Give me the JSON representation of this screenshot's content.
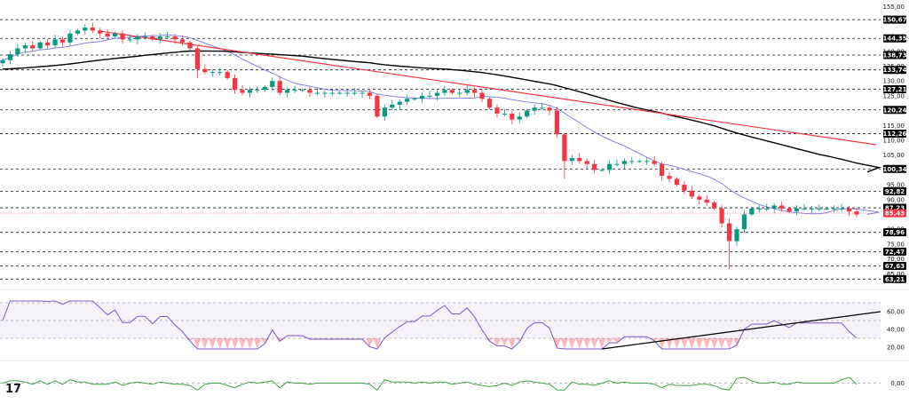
{
  "colors": {
    "bull": "#089981",
    "bear": "#f23645",
    "ma_fast": "#7b78e0",
    "ma_slow": "#000000",
    "trend": "#f23645",
    "rsi_line": "#7e57c2",
    "rsi_band": "#7e57c2",
    "osc_line": "#43a047",
    "badge_level": "#000000",
    "badge_price": "#f23645"
  },
  "logo_text": "17",
  "chart_data": [
    {
      "type": "candlestick",
      "y_ticks": [
        "155,00",
        "145,00",
        "140,00",
        "135,00",
        "130,00",
        "125,00",
        "120,00",
        "115,00",
        "110,00",
        "105,00",
        "95,00",
        "90,00",
        "80,00",
        "75,00",
        "70,00",
        "65,00"
      ],
      "levels": [
        "150,67",
        "144,35",
        "138,73",
        "133,74",
        "127,21",
        "120,24",
        "112,26",
        "100,34",
        "92,82",
        "87,23",
        "78,96",
        "72,47",
        "67,63",
        "63,21"
      ],
      "current_price": "85,43",
      "closes": [
        137,
        139,
        141,
        142,
        141,
        143,
        142,
        144,
        143,
        146,
        147,
        148,
        147,
        146,
        145,
        146,
        144,
        144,
        145,
        145,
        144,
        145,
        145,
        144,
        143,
        141,
        134,
        133,
        133,
        133,
        131,
        127,
        126,
        127,
        127,
        128,
        130,
        126,
        127,
        127,
        127,
        126,
        126,
        126,
        126,
        126,
        126,
        126,
        126,
        125,
        118,
        121,
        122,
        123,
        124,
        124,
        125,
        125,
        126,
        127,
        126,
        126,
        127,
        126,
        124,
        121,
        119,
        119,
        117,
        118,
        120,
        121,
        121,
        120,
        112,
        103,
        104,
        103,
        102,
        100,
        100,
        102,
        102,
        103,
        103,
        103,
        103,
        102,
        98,
        97,
        95,
        93,
        91,
        90,
        89,
        87,
        82,
        76,
        80,
        85,
        87,
        87,
        87,
        88,
        87,
        86,
        87,
        87,
        87,
        87,
        87,
        87,
        87,
        86,
        85
      ],
      "ma_fast_label": "",
      "ma_slow_label": ""
    },
    {
      "type": "line",
      "indicator": "rsi",
      "y_ticks": [
        "60,00",
        "40,00",
        "20,00"
      ],
      "upper_band": 70,
      "mid_band": 50,
      "lower_band": 30
    },
    {
      "type": "line",
      "indicator": "oscillator",
      "y_ticks": [
        "0,00"
      ],
      "zero_line": 0
    }
  ]
}
